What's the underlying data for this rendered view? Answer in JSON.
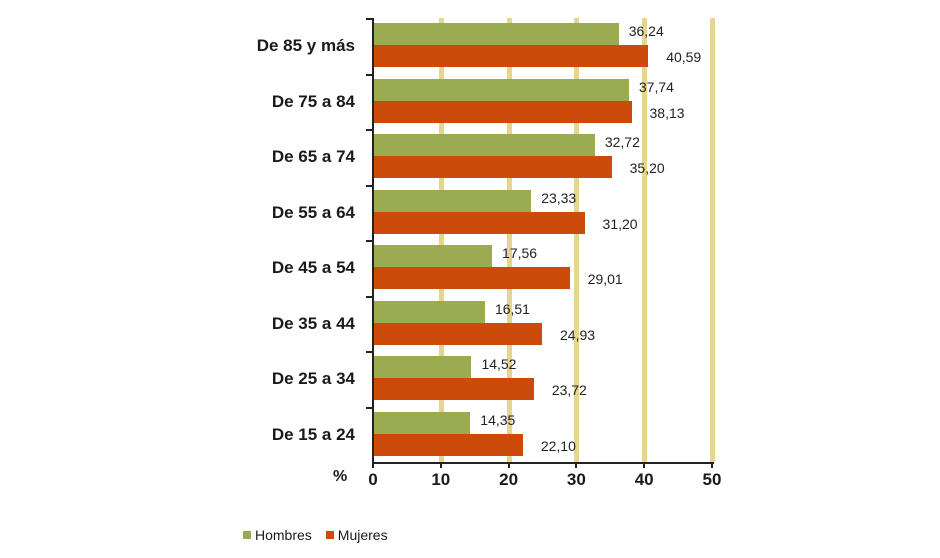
{
  "chart_data": {
    "type": "bar",
    "orientation": "horizontal",
    "title": "",
    "xlabel": "%",
    "ylabel": "",
    "xlim": [
      0,
      50
    ],
    "x_ticks": [
      "0",
      "10",
      "20",
      "30",
      "40",
      "50"
    ],
    "grid": true,
    "legend_position": "bottom",
    "categories": [
      "De 85 y más",
      "De 75 a 84",
      "De 65 a 74",
      "De 55 a 64",
      "De 45 a 54",
      "De 35 a 44",
      "De 25 a 34",
      "De 15 a 24"
    ],
    "series": [
      {
        "name": "Hombres",
        "color": "#9bab52",
        "values": [
          36.24,
          37.74,
          32.72,
          23.33,
          17.56,
          16.51,
          14.52,
          14.35
        ],
        "labels": [
          "36,24",
          "37,74",
          "32,72",
          "23,33",
          "17,56",
          "16,51",
          "14,52",
          "14,35"
        ]
      },
      {
        "name": "Mujeres",
        "color": "#cc4b0a",
        "values": [
          40.59,
          38.13,
          35.2,
          31.2,
          29.01,
          24.93,
          23.72,
          22.1
        ],
        "labels": [
          "40,59",
          "38,13",
          "35,20",
          "31,20",
          "29,01",
          "24,93",
          "23,72",
          "22,10"
        ]
      }
    ]
  },
  "axis": {
    "unit_label": "%"
  },
  "legend": {
    "items": [
      {
        "label": "Hombres",
        "color": "#9bab52"
      },
      {
        "label": "Mujeres",
        "color": "#cc4b0a"
      }
    ]
  },
  "colors": {
    "gridline": "#e5d58e",
    "axis": "#222222"
  }
}
